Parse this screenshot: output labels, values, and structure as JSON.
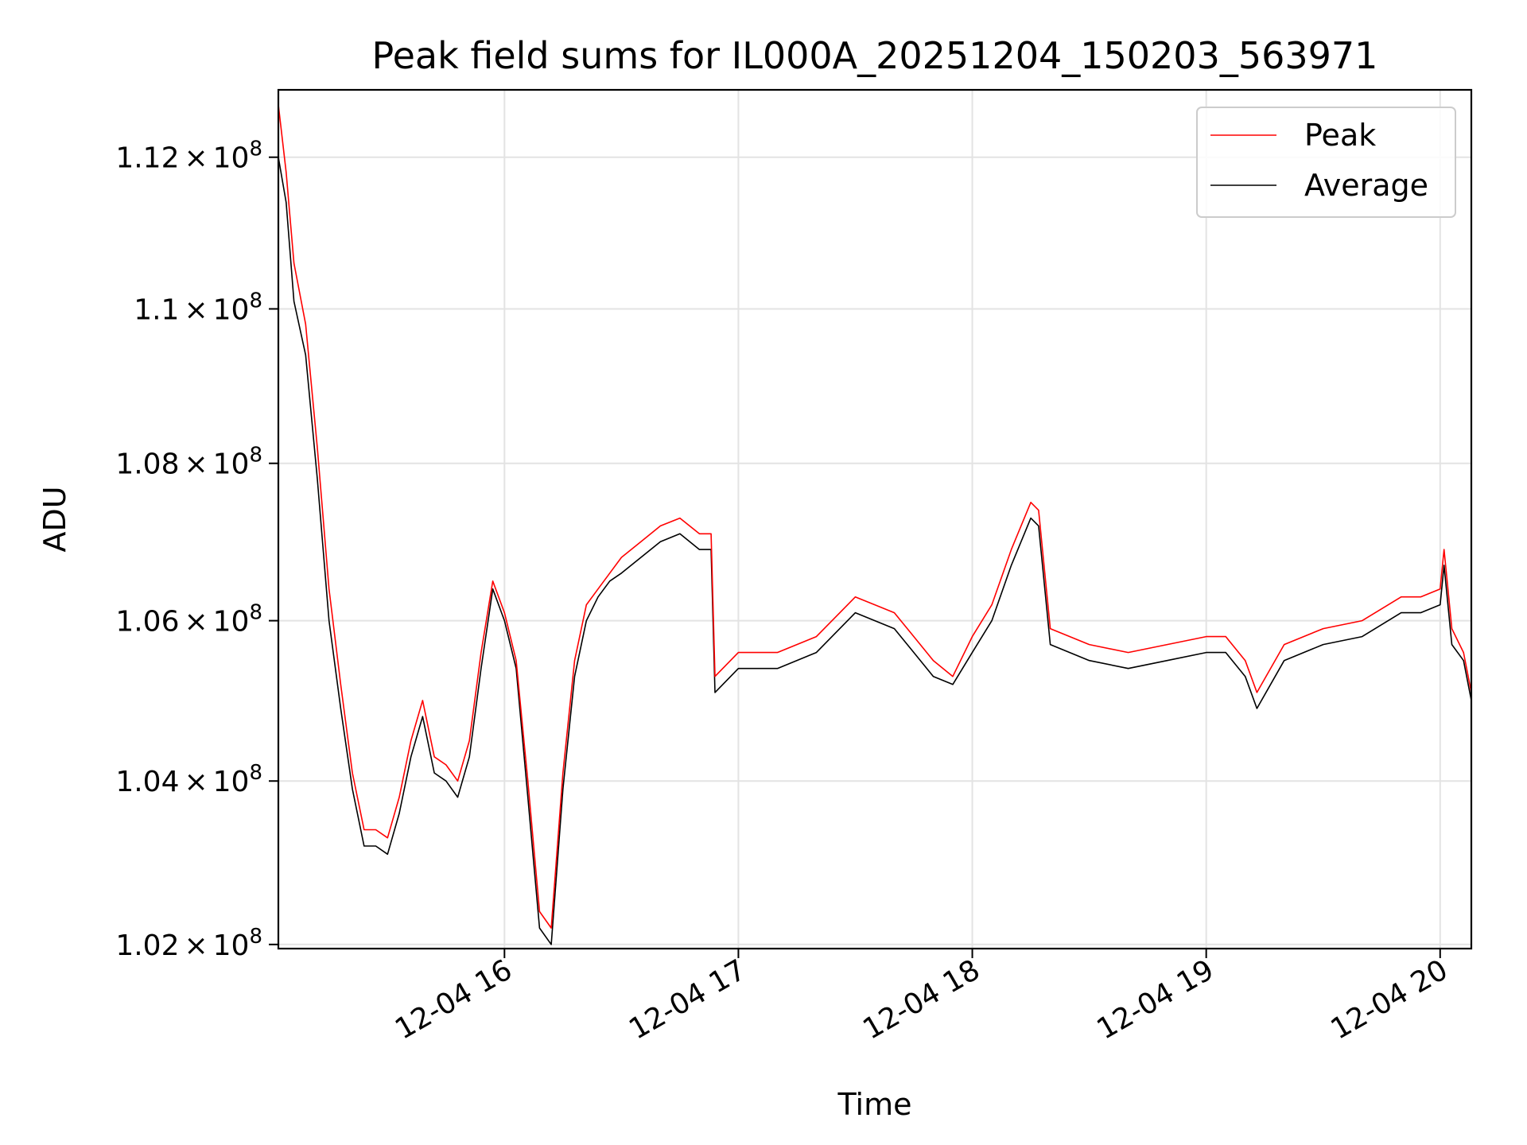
{
  "chart_data": {
    "type": "line",
    "title": "Peak field sums for IL000A_20251204_150203_563971",
    "xlabel": "Time",
    "ylabel": "ADU",
    "x_range": [
      "2025-12-04 15:02",
      "2025-12-04 20:08"
    ],
    "ylim": [
      101950000,
      112900000
    ],
    "y_scale": "log",
    "grid": true,
    "legend_position": "top-right",
    "x_ticks": [
      {
        "value": "2025-12-04 16:00",
        "label": "12-04 16"
      },
      {
        "value": "2025-12-04 17:00",
        "label": "12-04 17"
      },
      {
        "value": "2025-12-04 18:00",
        "label": "12-04 18"
      },
      {
        "value": "2025-12-04 19:00",
        "label": "12-04 19"
      },
      {
        "value": "2025-12-04 20:00",
        "label": "12-04 20"
      }
    ],
    "y_ticks": [
      {
        "value": 102000000,
        "mantissa": "1.02",
        "exponent": "8"
      },
      {
        "value": 104000000,
        "mantissa": "1.04",
        "exponent": "8"
      },
      {
        "value": 106000000,
        "mantissa": "1.06",
        "exponent": "8"
      },
      {
        "value": 108000000,
        "mantissa": "1.08",
        "exponent": "8"
      },
      {
        "value": 110000000,
        "mantissa": "1.1",
        "exponent": "8"
      },
      {
        "value": 112000000,
        "mantissa": "1.12",
        "exponent": "8"
      }
    ],
    "times_symbol": "×",
    "series": [
      {
        "name": "Peak",
        "color": "#ff0000",
        "x": [
          "2025-12-04 15:02",
          "2025-12-04 15:04",
          "2025-12-04 15:06",
          "2025-12-04 15:09",
          "2025-12-04 15:12",
          "2025-12-04 15:15",
          "2025-12-04 15:18",
          "2025-12-04 15:21",
          "2025-12-04 15:24",
          "2025-12-04 15:27",
          "2025-12-04 15:30",
          "2025-12-04 15:33",
          "2025-12-04 15:36",
          "2025-12-04 15:39",
          "2025-12-04 15:42",
          "2025-12-04 15:45",
          "2025-12-04 15:48",
          "2025-12-04 15:51",
          "2025-12-04 15:54",
          "2025-12-04 15:57",
          "2025-12-04 16:00",
          "2025-12-04 16:03",
          "2025-12-04 16:06",
          "2025-12-04 16:09",
          "2025-12-04 16:12",
          "2025-12-04 16:15",
          "2025-12-04 16:18",
          "2025-12-04 16:21",
          "2025-12-04 16:24",
          "2025-12-04 16:27",
          "2025-12-04 16:30",
          "2025-12-04 16:35",
          "2025-12-04 16:40",
          "2025-12-04 16:45",
          "2025-12-04 16:50",
          "2025-12-04 16:53",
          "2025-12-04 16:54",
          "2025-12-04 17:00",
          "2025-12-04 17:10",
          "2025-12-04 17:20",
          "2025-12-04 17:30",
          "2025-12-04 17:40",
          "2025-12-04 17:50",
          "2025-12-04 17:55",
          "2025-12-04 18:00",
          "2025-12-04 18:05",
          "2025-12-04 18:10",
          "2025-12-04 18:15",
          "2025-12-04 18:17",
          "2025-12-04 18:20",
          "2025-12-04 18:30",
          "2025-12-04 18:40",
          "2025-12-04 18:50",
          "2025-12-04 19:00",
          "2025-12-04 19:05",
          "2025-12-04 19:10",
          "2025-12-04 19:13",
          "2025-12-04 19:20",
          "2025-12-04 19:30",
          "2025-12-04 19:40",
          "2025-12-04 19:50",
          "2025-12-04 19:55",
          "2025-12-04 20:00",
          "2025-12-04 20:01",
          "2025-12-04 20:03",
          "2025-12-04 20:06",
          "2025-12-04 20:08"
        ],
        "y": [
          112700000,
          111800000,
          110600000,
          109800000,
          108200000,
          106400000,
          105200000,
          104100000,
          103400000,
          103400000,
          103300000,
          103800000,
          104500000,
          105000000,
          104300000,
          104200000,
          104000000,
          104500000,
          105600000,
          106500000,
          106100000,
          105500000,
          104000000,
          102400000,
          102200000,
          104100000,
          105500000,
          106200000,
          106400000,
          106600000,
          106800000,
          107000000,
          107200000,
          107300000,
          107100000,
          107100000,
          105300000,
          105600000,
          105600000,
          105800000,
          106300000,
          106100000,
          105500000,
          105300000,
          105800000,
          106200000,
          106900000,
          107500000,
          107400000,
          105900000,
          105700000,
          105600000,
          105700000,
          105800000,
          105800000,
          105500000,
          105100000,
          105700000,
          105900000,
          106000000,
          106300000,
          106300000,
          106400000,
          106900000,
          105900000,
          105600000,
          105100000
        ]
      },
      {
        "name": "Average",
        "color": "#000000",
        "x": [
          "2025-12-04 15:02",
          "2025-12-04 15:04",
          "2025-12-04 15:06",
          "2025-12-04 15:09",
          "2025-12-04 15:12",
          "2025-12-04 15:15",
          "2025-12-04 15:18",
          "2025-12-04 15:21",
          "2025-12-04 15:24",
          "2025-12-04 15:27",
          "2025-12-04 15:30",
          "2025-12-04 15:33",
          "2025-12-04 15:36",
          "2025-12-04 15:39",
          "2025-12-04 15:42",
          "2025-12-04 15:45",
          "2025-12-04 15:48",
          "2025-12-04 15:51",
          "2025-12-04 15:54",
          "2025-12-04 15:57",
          "2025-12-04 16:00",
          "2025-12-04 16:03",
          "2025-12-04 16:06",
          "2025-12-04 16:09",
          "2025-12-04 16:12",
          "2025-12-04 16:15",
          "2025-12-04 16:18",
          "2025-12-04 16:21",
          "2025-12-04 16:24",
          "2025-12-04 16:27",
          "2025-12-04 16:30",
          "2025-12-04 16:35",
          "2025-12-04 16:40",
          "2025-12-04 16:45",
          "2025-12-04 16:50",
          "2025-12-04 16:53",
          "2025-12-04 16:54",
          "2025-12-04 17:00",
          "2025-12-04 17:10",
          "2025-12-04 17:20",
          "2025-12-04 17:30",
          "2025-12-04 17:40",
          "2025-12-04 17:50",
          "2025-12-04 17:55",
          "2025-12-04 18:00",
          "2025-12-04 18:05",
          "2025-12-04 18:10",
          "2025-12-04 18:15",
          "2025-12-04 18:17",
          "2025-12-04 18:20",
          "2025-12-04 18:30",
          "2025-12-04 18:40",
          "2025-12-04 18:50",
          "2025-12-04 19:00",
          "2025-12-04 19:05",
          "2025-12-04 19:10",
          "2025-12-04 19:13",
          "2025-12-04 19:20",
          "2025-12-04 19:30",
          "2025-12-04 19:40",
          "2025-12-04 19:50",
          "2025-12-04 19:55",
          "2025-12-04 20:00",
          "2025-12-04 20:01",
          "2025-12-04 20:03",
          "2025-12-04 20:06",
          "2025-12-04 20:08"
        ],
        "y": [
          112000000,
          111400000,
          110100000,
          109400000,
          107800000,
          106000000,
          104900000,
          103900000,
          103200000,
          103200000,
          103100000,
          103600000,
          104300000,
          104800000,
          104100000,
          104000000,
          103800000,
          104300000,
          105400000,
          106400000,
          106000000,
          105400000,
          103800000,
          102200000,
          102000000,
          103900000,
          105300000,
          106000000,
          106300000,
          106500000,
          106600000,
          106800000,
          107000000,
          107100000,
          106900000,
          106900000,
          105100000,
          105400000,
          105400000,
          105600000,
          106100000,
          105900000,
          105300000,
          105200000,
          105600000,
          106000000,
          106700000,
          107300000,
          107200000,
          105700000,
          105500000,
          105400000,
          105500000,
          105600000,
          105600000,
          105300000,
          104900000,
          105500000,
          105700000,
          105800000,
          106100000,
          106100000,
          106200000,
          106700000,
          105700000,
          105500000,
          105000000
        ]
      }
    ]
  }
}
